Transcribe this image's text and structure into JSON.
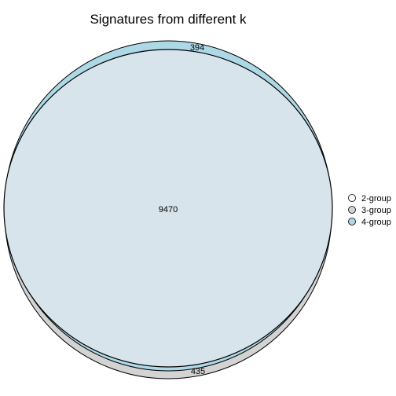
{
  "title": "Signatures from different k",
  "chart_data": {
    "type": "venn",
    "title": "Signatures from different k",
    "sets": [
      {
        "name": "2-group",
        "color": "#ffffff"
      },
      {
        "name": "3-group",
        "color": "#d3d3d3"
      },
      {
        "name": "4-group",
        "color": "#add8e6"
      }
    ],
    "regions": [
      {
        "sets": [
          "2-group",
          "3-group",
          "4-group"
        ],
        "value": "9470"
      },
      {
        "sets": [
          "4-group"
        ],
        "value": "394"
      },
      {
        "sets": [
          "3-group"
        ],
        "value": "435"
      }
    ],
    "overlap_fill": "#d7e4ec",
    "legend_position": "right"
  },
  "legend": {
    "items": [
      {
        "label": "2-group",
        "color": "#ffffff"
      },
      {
        "label": "3-group",
        "color": "#d3d3d3"
      },
      {
        "label": "4-group",
        "color": "#add8e6"
      }
    ]
  }
}
